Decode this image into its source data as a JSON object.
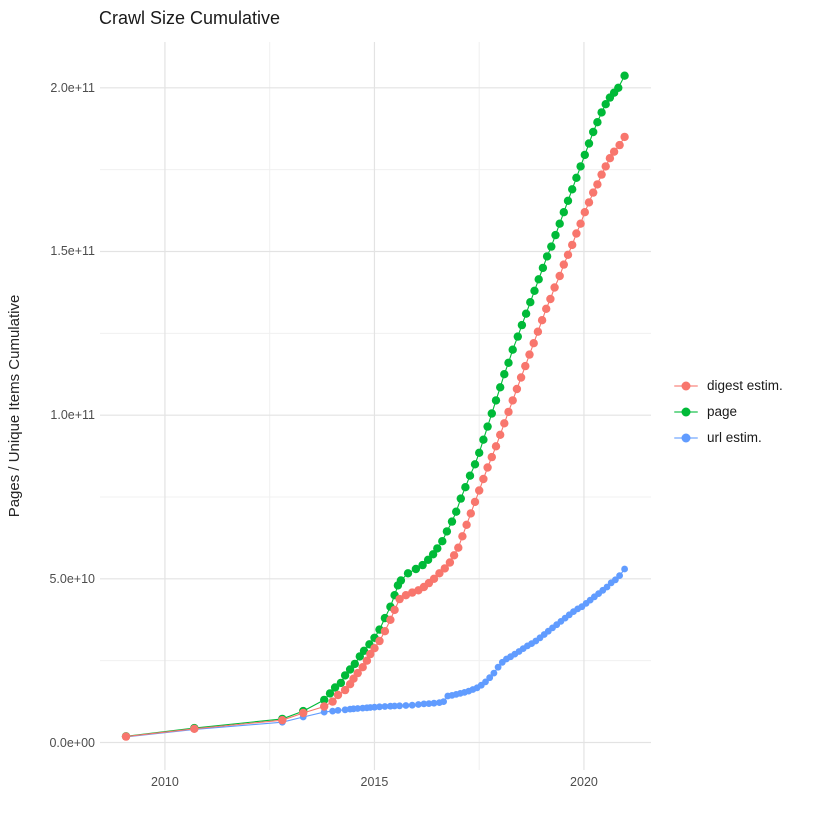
{
  "chart_data": {
    "type": "scatter",
    "title": "Crawl Size Cumulative",
    "xlabel": "",
    "ylabel": "Pages / Unique Items Cumulative",
    "value_unit": "billions (1e9)",
    "x_range": [
      2008.45,
      2021.6
    ],
    "y_range_billions": [
      -8.4,
      214
    ],
    "grid": true,
    "legend_position": "right",
    "x_axis": {
      "major_ticks": [
        2010,
        2015,
        2020
      ],
      "major_labels": [
        "2010",
        "2015",
        "2020"
      ],
      "minor_ticks": [
        2012.5,
        2017.5
      ]
    },
    "y_axis": {
      "major_ticks_billions": [
        0,
        50,
        100,
        150,
        200
      ],
      "major_labels": [
        "0.0e+00",
        "5.0e+10",
        "1.0e+11",
        "1.5e+11",
        "2.0e+11"
      ],
      "minor_ticks_billions": [
        25,
        75,
        125,
        175
      ]
    },
    "series": [
      {
        "name": "digest estim.",
        "color": "#F8766D",
        "points": [
          [
            2009.07,
            1.8
          ],
          [
            2010.7,
            4.2
          ],
          [
            2012.8,
            6.8
          ],
          [
            2013.3,
            9.0
          ],
          [
            2013.8,
            11.0
          ],
          [
            2014.0,
            12.5
          ],
          [
            2014.13,
            14.5
          ],
          [
            2014.3,
            16.0
          ],
          [
            2014.42,
            17.8
          ],
          [
            2014.5,
            19.5
          ],
          [
            2014.6,
            21.2
          ],
          [
            2014.72,
            23.0
          ],
          [
            2014.82,
            25.0
          ],
          [
            2014.9,
            27.0
          ],
          [
            2015.0,
            28.8
          ],
          [
            2015.12,
            31.0
          ],
          [
            2015.25,
            34.0
          ],
          [
            2015.38,
            37.5
          ],
          [
            2015.48,
            40.5
          ],
          [
            2015.6,
            43.8
          ],
          [
            2015.75,
            45.0
          ],
          [
            2015.9,
            45.8
          ],
          [
            2016.05,
            46.5
          ],
          [
            2016.18,
            47.5
          ],
          [
            2016.3,
            48.7
          ],
          [
            2016.42,
            50.0
          ],
          [
            2016.55,
            51.7
          ],
          [
            2016.68,
            53.2
          ],
          [
            2016.8,
            55.0
          ],
          [
            2016.9,
            57.2
          ],
          [
            2017.0,
            59.5
          ],
          [
            2017.1,
            63.0
          ],
          [
            2017.2,
            66.5
          ],
          [
            2017.3,
            70.0
          ],
          [
            2017.4,
            73.5
          ],
          [
            2017.5,
            77.0
          ],
          [
            2017.6,
            80.5
          ],
          [
            2017.7,
            84.0
          ],
          [
            2017.8,
            87.2
          ],
          [
            2017.9,
            90.5
          ],
          [
            2018.0,
            94.0
          ],
          [
            2018.1,
            97.5
          ],
          [
            2018.2,
            101.0
          ],
          [
            2018.3,
            104.5
          ],
          [
            2018.4,
            108.0
          ],
          [
            2018.5,
            111.5
          ],
          [
            2018.6,
            115.0
          ],
          [
            2018.7,
            118.5
          ],
          [
            2018.8,
            122.0
          ],
          [
            2018.9,
            125.5
          ],
          [
            2019.0,
            129.0
          ],
          [
            2019.1,
            132.5
          ],
          [
            2019.2,
            135.5
          ],
          [
            2019.3,
            139.0
          ],
          [
            2019.42,
            142.5
          ],
          [
            2019.52,
            146.0
          ],
          [
            2019.62,
            149.0
          ],
          [
            2019.72,
            152.0
          ],
          [
            2019.82,
            155.5
          ],
          [
            2019.92,
            158.5
          ],
          [
            2020.02,
            162.0
          ],
          [
            2020.12,
            165.0
          ],
          [
            2020.22,
            168.0
          ],
          [
            2020.32,
            170.5
          ],
          [
            2020.42,
            173.5
          ],
          [
            2020.52,
            176.0
          ],
          [
            2020.62,
            178.5
          ],
          [
            2020.72,
            180.5
          ],
          [
            2020.85,
            182.5
          ],
          [
            2020.97,
            185.0
          ]
        ]
      },
      {
        "name": "page",
        "color": "#00BA38",
        "points": [
          [
            2009.07,
            1.9
          ],
          [
            2010.7,
            4.4
          ],
          [
            2012.8,
            7.2
          ],
          [
            2013.3,
            9.6
          ],
          [
            2013.8,
            13.0
          ],
          [
            2013.94,
            15.0
          ],
          [
            2014.06,
            16.8
          ],
          [
            2014.2,
            18.2
          ],
          [
            2014.3,
            20.5
          ],
          [
            2014.42,
            22.3
          ],
          [
            2014.53,
            24.0
          ],
          [
            2014.65,
            26.3
          ],
          [
            2014.75,
            28.0
          ],
          [
            2014.88,
            30.0
          ],
          [
            2015.0,
            32.0
          ],
          [
            2015.12,
            34.5
          ],
          [
            2015.25,
            38.0
          ],
          [
            2015.38,
            41.5
          ],
          [
            2015.48,
            45.0
          ],
          [
            2015.56,
            48.0
          ],
          [
            2015.63,
            49.5
          ],
          [
            2015.8,
            51.7
          ],
          [
            2015.99,
            53.0
          ],
          [
            2016.15,
            54.2
          ],
          [
            2016.28,
            55.8
          ],
          [
            2016.4,
            57.5
          ],
          [
            2016.5,
            59.3
          ],
          [
            2016.62,
            61.5
          ],
          [
            2016.73,
            64.5
          ],
          [
            2016.85,
            67.5
          ],
          [
            2016.95,
            70.5
          ],
          [
            2017.06,
            74.5
          ],
          [
            2017.17,
            78.0
          ],
          [
            2017.28,
            81.5
          ],
          [
            2017.4,
            85.0
          ],
          [
            2017.5,
            88.5
          ],
          [
            2017.6,
            92.5
          ],
          [
            2017.7,
            96.5
          ],
          [
            2017.8,
            100.5
          ],
          [
            2017.9,
            104.5
          ],
          [
            2018.0,
            108.5
          ],
          [
            2018.1,
            112.5
          ],
          [
            2018.2,
            116.0
          ],
          [
            2018.3,
            120.0
          ],
          [
            2018.42,
            124.0
          ],
          [
            2018.52,
            127.5
          ],
          [
            2018.62,
            131.0
          ],
          [
            2018.72,
            134.5
          ],
          [
            2018.82,
            138.0
          ],
          [
            2018.92,
            141.5
          ],
          [
            2019.02,
            145.0
          ],
          [
            2019.12,
            148.5
          ],
          [
            2019.22,
            151.5
          ],
          [
            2019.32,
            155.0
          ],
          [
            2019.42,
            158.5
          ],
          [
            2019.52,
            162.0
          ],
          [
            2019.62,
            165.5
          ],
          [
            2019.72,
            169.0
          ],
          [
            2019.82,
            172.5
          ],
          [
            2019.92,
            176.0
          ],
          [
            2020.02,
            179.5
          ],
          [
            2020.12,
            183.0
          ],
          [
            2020.22,
            186.5
          ],
          [
            2020.32,
            189.5
          ],
          [
            2020.42,
            192.5
          ],
          [
            2020.52,
            195.0
          ],
          [
            2020.62,
            197.0
          ],
          [
            2020.72,
            198.5
          ],
          [
            2020.82,
            200.0
          ],
          [
            2020.97,
            203.7
          ]
        ]
      },
      {
        "name": "url estim.",
        "color": "#619CFF",
        "points": [
          [
            2009.07,
            1.7
          ],
          [
            2010.7,
            4.0
          ],
          [
            2012.8,
            6.2
          ],
          [
            2013.3,
            7.8
          ],
          [
            2013.8,
            9.3
          ],
          [
            2014.0,
            9.6
          ],
          [
            2014.13,
            9.8
          ],
          [
            2014.3,
            10.0
          ],
          [
            2014.42,
            10.2
          ],
          [
            2014.5,
            10.3
          ],
          [
            2014.6,
            10.4
          ],
          [
            2014.72,
            10.5
          ],
          [
            2014.82,
            10.6
          ],
          [
            2014.9,
            10.7
          ],
          [
            2015.0,
            10.8
          ],
          [
            2015.12,
            10.9
          ],
          [
            2015.25,
            11.0
          ],
          [
            2015.38,
            11.1
          ],
          [
            2015.48,
            11.15
          ],
          [
            2015.6,
            11.2
          ],
          [
            2015.75,
            11.3
          ],
          [
            2015.9,
            11.4
          ],
          [
            2016.05,
            11.6
          ],
          [
            2016.18,
            11.8
          ],
          [
            2016.3,
            11.9
          ],
          [
            2016.42,
            12.0
          ],
          [
            2016.55,
            12.2
          ],
          [
            2016.65,
            12.5
          ],
          [
            2016.75,
            14.2
          ],
          [
            2016.85,
            14.4
          ],
          [
            2016.95,
            14.7
          ],
          [
            2017.05,
            15.0
          ],
          [
            2017.15,
            15.3
          ],
          [
            2017.25,
            15.7
          ],
          [
            2017.35,
            16.2
          ],
          [
            2017.45,
            16.7
          ],
          [
            2017.55,
            17.5
          ],
          [
            2017.65,
            18.5
          ],
          [
            2017.75,
            19.8
          ],
          [
            2017.85,
            21.2
          ],
          [
            2017.95,
            23.0
          ],
          [
            2018.05,
            24.5
          ],
          [
            2018.15,
            25.5
          ],
          [
            2018.25,
            26.2
          ],
          [
            2018.35,
            27.0
          ],
          [
            2018.45,
            27.8
          ],
          [
            2018.55,
            28.7
          ],
          [
            2018.65,
            29.5
          ],
          [
            2018.75,
            30.2
          ],
          [
            2018.85,
            31.0
          ],
          [
            2018.95,
            32.0
          ],
          [
            2019.05,
            33.0
          ],
          [
            2019.15,
            34.0
          ],
          [
            2019.25,
            35.0
          ],
          [
            2019.35,
            36.0
          ],
          [
            2019.45,
            37.0
          ],
          [
            2019.55,
            38.0
          ],
          [
            2019.65,
            39.0
          ],
          [
            2019.75,
            40.0
          ],
          [
            2019.85,
            40.8
          ],
          [
            2019.95,
            41.5
          ],
          [
            2020.05,
            42.5
          ],
          [
            2020.15,
            43.5
          ],
          [
            2020.25,
            44.5
          ],
          [
            2020.35,
            45.5
          ],
          [
            2020.45,
            46.5
          ],
          [
            2020.55,
            47.5
          ],
          [
            2020.65,
            48.8
          ],
          [
            2020.75,
            49.7
          ],
          [
            2020.85,
            51.0
          ],
          [
            2020.97,
            53.0
          ]
        ]
      }
    ],
    "colors": {
      "grid_major": "#e3e3e3",
      "grid_minor": "#f0f0f0",
      "tick_label": "#4d4d4d",
      "title_text": "#1a1a1a"
    }
  }
}
